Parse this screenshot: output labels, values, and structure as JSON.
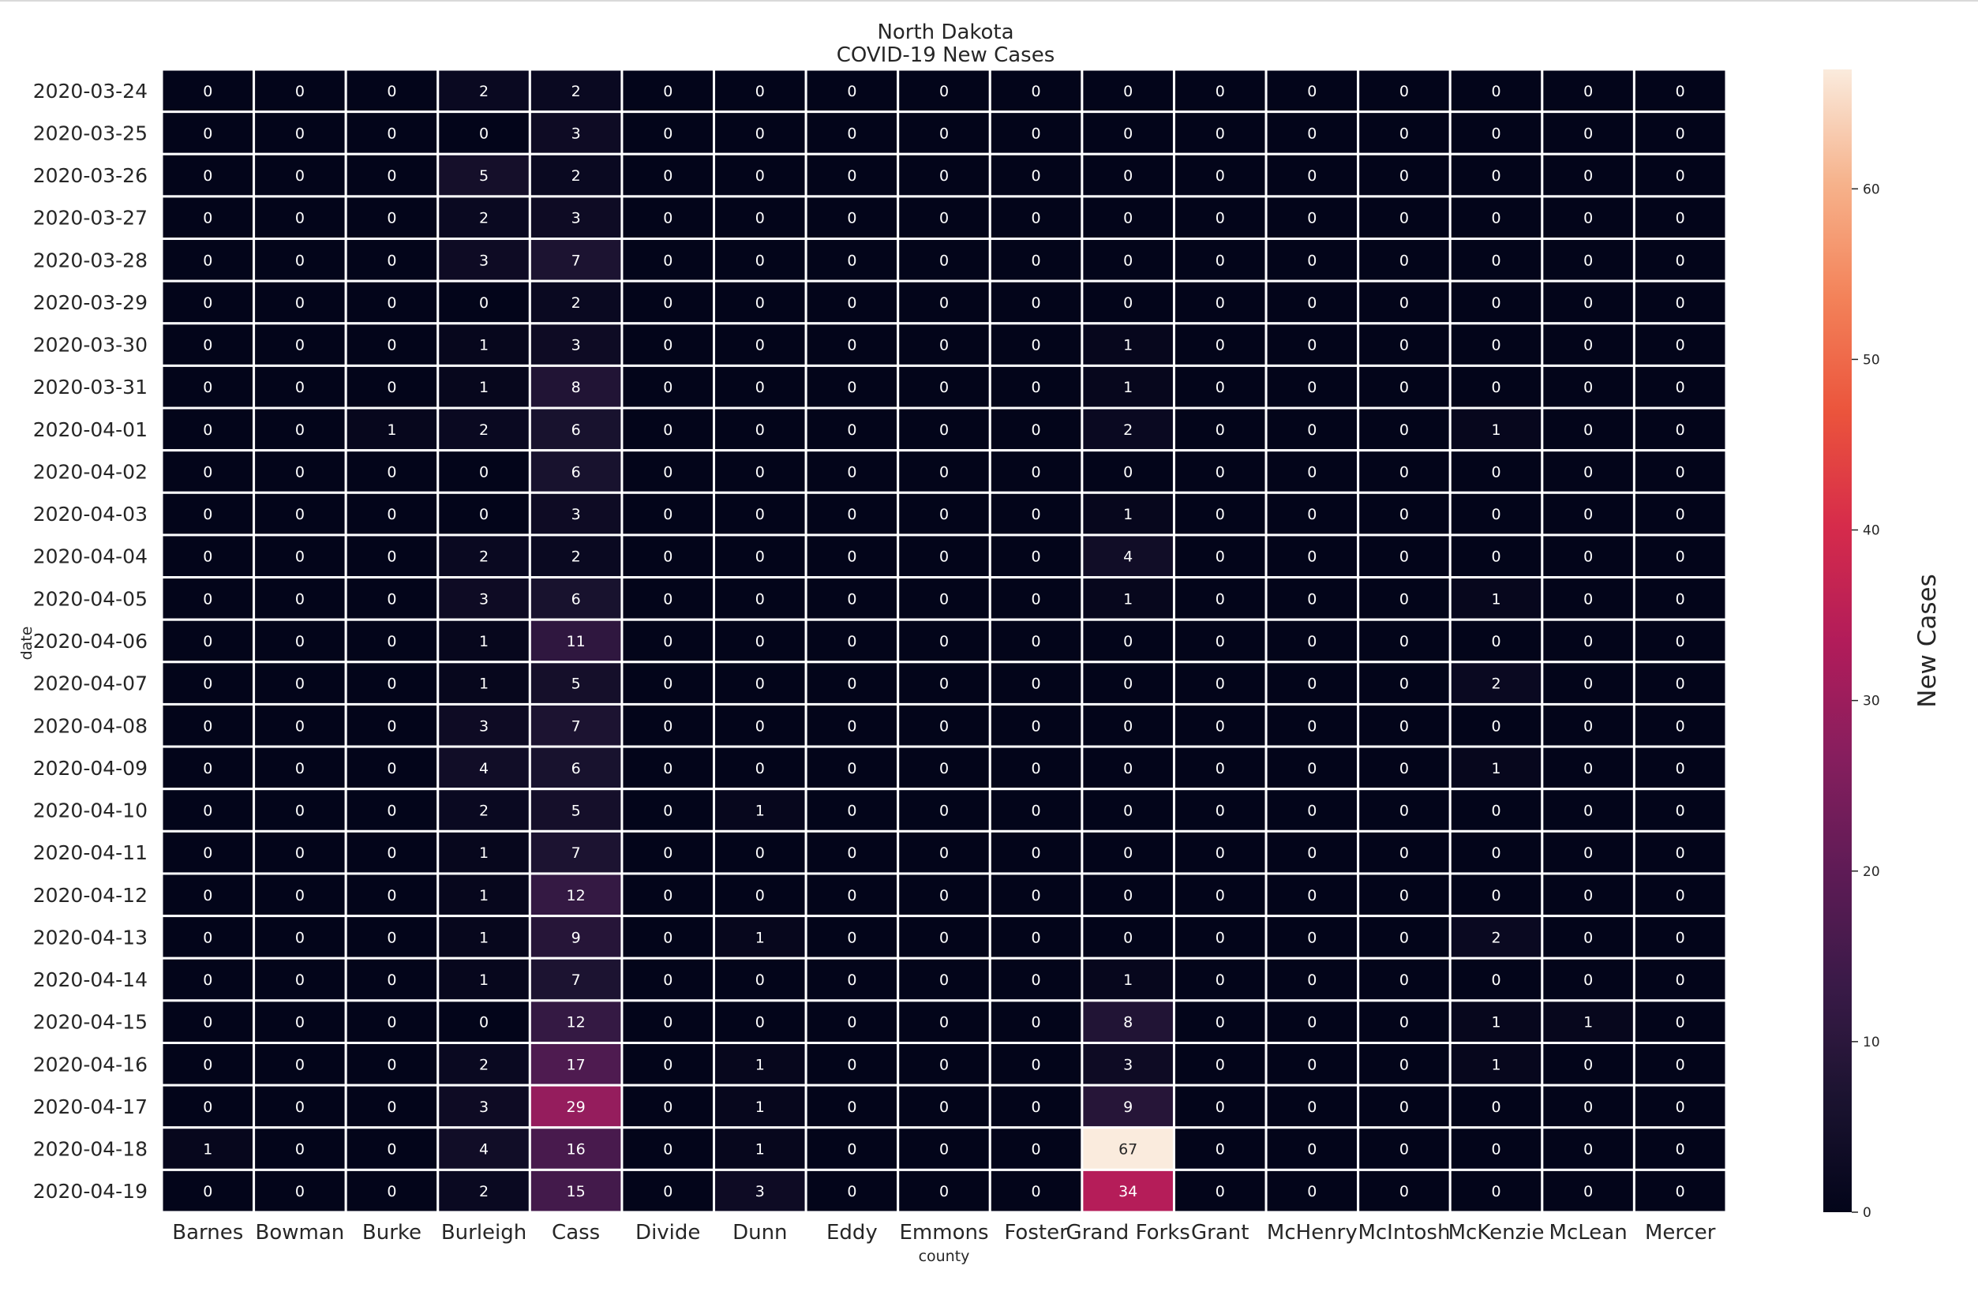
{
  "chart_data": {
    "type": "heatmap",
    "title": "North Dakota",
    "subtitle": "COVID-19 New Cases",
    "xlabel": "county",
    "ylabel": "date",
    "colorbar_label": "New Cases",
    "colorbar_ticks": [
      0,
      10,
      20,
      30,
      40,
      50,
      60
    ],
    "value_range": [
      0,
      67
    ],
    "colormap": "rocket",
    "grid": true,
    "gridline_color": "#ffffff",
    "columns": [
      "Barnes",
      "Bowman",
      "Burke",
      "Burleigh",
      "Cass",
      "Divide",
      "Dunn",
      "Eddy",
      "Emmons",
      "Foster",
      "Grand Forks",
      "Grant",
      "McHenry",
      "McIntosh",
      "McKenzie",
      "McLean",
      "Mercer"
    ],
    "rows": [
      "2020-03-24",
      "2020-03-25",
      "2020-03-26",
      "2020-03-27",
      "2020-03-28",
      "2020-03-29",
      "2020-03-30",
      "2020-03-31",
      "2020-04-01",
      "2020-04-02",
      "2020-04-03",
      "2020-04-04",
      "2020-04-05",
      "2020-04-06",
      "2020-04-07",
      "2020-04-08",
      "2020-04-09",
      "2020-04-10",
      "2020-04-11",
      "2020-04-12",
      "2020-04-13",
      "2020-04-14",
      "2020-04-15",
      "2020-04-16",
      "2020-04-17",
      "2020-04-18",
      "2020-04-19"
    ],
    "values": [
      [
        0,
        0,
        0,
        2,
        2,
        0,
        0,
        0,
        0,
        0,
        0,
        0,
        0,
        0,
        0,
        0,
        0
      ],
      [
        0,
        0,
        0,
        0,
        3,
        0,
        0,
        0,
        0,
        0,
        0,
        0,
        0,
        0,
        0,
        0,
        0
      ],
      [
        0,
        0,
        0,
        5,
        2,
        0,
        0,
        0,
        0,
        0,
        0,
        0,
        0,
        0,
        0,
        0,
        0
      ],
      [
        0,
        0,
        0,
        2,
        3,
        0,
        0,
        0,
        0,
        0,
        0,
        0,
        0,
        0,
        0,
        0,
        0
      ],
      [
        0,
        0,
        0,
        3,
        7,
        0,
        0,
        0,
        0,
        0,
        0,
        0,
        0,
        0,
        0,
        0,
        0
      ],
      [
        0,
        0,
        0,
        0,
        2,
        0,
        0,
        0,
        0,
        0,
        0,
        0,
        0,
        0,
        0,
        0,
        0
      ],
      [
        0,
        0,
        0,
        1,
        3,
        0,
        0,
        0,
        0,
        0,
        1,
        0,
        0,
        0,
        0,
        0,
        0
      ],
      [
        0,
        0,
        0,
        1,
        8,
        0,
        0,
        0,
        0,
        0,
        1,
        0,
        0,
        0,
        0,
        0,
        0
      ],
      [
        0,
        0,
        1,
        2,
        6,
        0,
        0,
        0,
        0,
        0,
        2,
        0,
        0,
        0,
        1,
        0,
        0
      ],
      [
        0,
        0,
        0,
        0,
        6,
        0,
        0,
        0,
        0,
        0,
        0,
        0,
        0,
        0,
        0,
        0,
        0
      ],
      [
        0,
        0,
        0,
        0,
        3,
        0,
        0,
        0,
        0,
        0,
        1,
        0,
        0,
        0,
        0,
        0,
        0
      ],
      [
        0,
        0,
        0,
        2,
        2,
        0,
        0,
        0,
        0,
        0,
        4,
        0,
        0,
        0,
        0,
        0,
        0
      ],
      [
        0,
        0,
        0,
        3,
        6,
        0,
        0,
        0,
        0,
        0,
        1,
        0,
        0,
        0,
        1,
        0,
        0
      ],
      [
        0,
        0,
        0,
        1,
        11,
        0,
        0,
        0,
        0,
        0,
        0,
        0,
        0,
        0,
        0,
        0,
        0
      ],
      [
        0,
        0,
        0,
        1,
        5,
        0,
        0,
        0,
        0,
        0,
        0,
        0,
        0,
        0,
        2,
        0,
        0
      ],
      [
        0,
        0,
        0,
        3,
        7,
        0,
        0,
        0,
        0,
        0,
        0,
        0,
        0,
        0,
        0,
        0,
        0
      ],
      [
        0,
        0,
        0,
        4,
        6,
        0,
        0,
        0,
        0,
        0,
        0,
        0,
        0,
        0,
        1,
        0,
        0
      ],
      [
        0,
        0,
        0,
        2,
        5,
        0,
        1,
        0,
        0,
        0,
        0,
        0,
        0,
        0,
        0,
        0,
        0
      ],
      [
        0,
        0,
        0,
        1,
        7,
        0,
        0,
        0,
        0,
        0,
        0,
        0,
        0,
        0,
        0,
        0,
        0
      ],
      [
        0,
        0,
        0,
        1,
        12,
        0,
        0,
        0,
        0,
        0,
        0,
        0,
        0,
        0,
        0,
        0,
        0
      ],
      [
        0,
        0,
        0,
        1,
        9,
        0,
        1,
        0,
        0,
        0,
        0,
        0,
        0,
        0,
        2,
        0,
        0
      ],
      [
        0,
        0,
        0,
        1,
        7,
        0,
        0,
        0,
        0,
        0,
        1,
        0,
        0,
        0,
        0,
        0,
        0
      ],
      [
        0,
        0,
        0,
        0,
        12,
        0,
        0,
        0,
        0,
        0,
        8,
        0,
        0,
        0,
        1,
        1,
        0
      ],
      [
        0,
        0,
        0,
        2,
        17,
        0,
        1,
        0,
        0,
        0,
        3,
        0,
        0,
        0,
        1,
        0,
        0
      ],
      [
        0,
        0,
        0,
        3,
        29,
        0,
        1,
        0,
        0,
        0,
        9,
        0,
        0,
        0,
        0,
        0,
        0
      ],
      [
        1,
        0,
        0,
        4,
        16,
        0,
        1,
        0,
        0,
        0,
        67,
        0,
        0,
        0,
        0,
        0,
        0
      ],
      [
        0,
        0,
        0,
        2,
        15,
        0,
        3,
        0,
        0,
        0,
        34,
        0,
        0,
        0,
        0,
        0,
        0
      ]
    ]
  }
}
